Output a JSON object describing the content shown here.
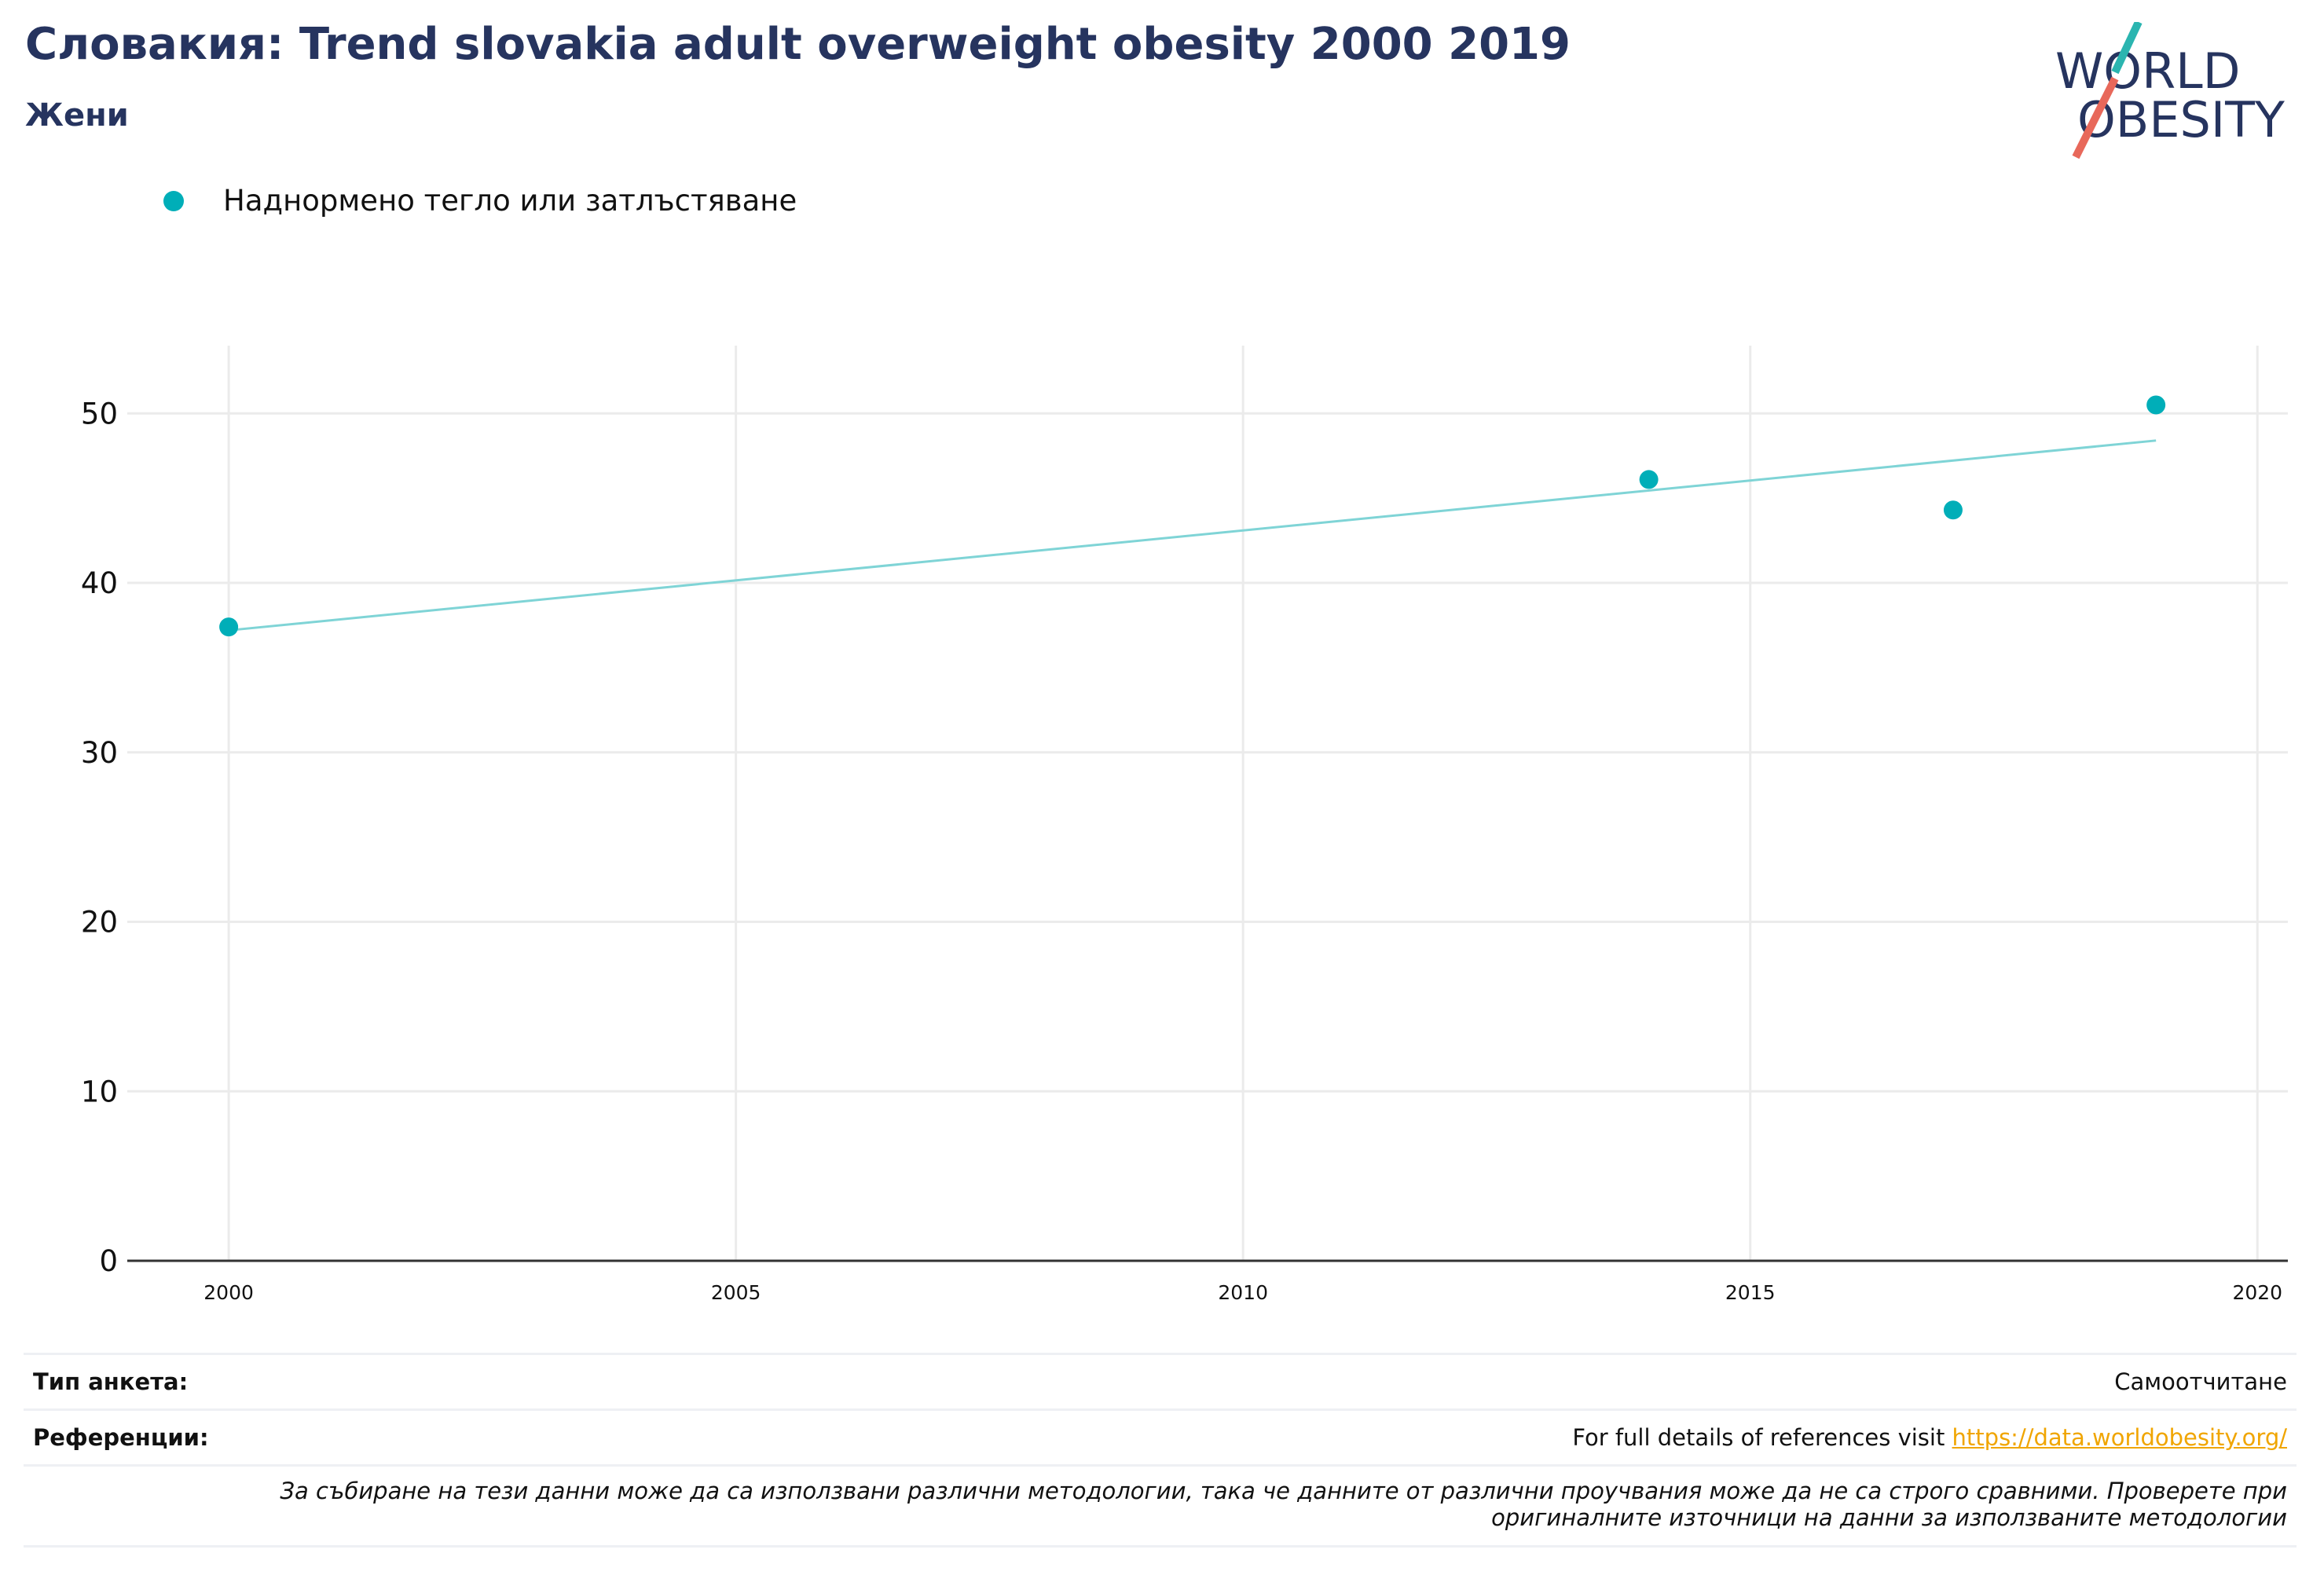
{
  "header": {
    "title": "Словакия: Trend slovakia adult overweight obesity 2000 2019",
    "subtitle": "Жени"
  },
  "logo": {
    "line1": "WORLD",
    "line2": "OBESITY",
    "accent_teal": "#2bb5b0",
    "accent_red": "#e8685a"
  },
  "colors": {
    "series": "#00aeb8",
    "trend": "#7fd4d6",
    "title": "#26345f",
    "grid": "#ebebeb",
    "link": "#f0a500"
  },
  "chart_data": {
    "type": "scatter",
    "legend": {
      "label": "Наднормено тегло или затлъстяване",
      "position": "top-left"
    },
    "series": [
      {
        "name": "Наднормено тегло или затлъстяване",
        "x": [
          2000,
          2014,
          2017,
          2019
        ],
        "y": [
          37.4,
          46.1,
          44.3,
          50.5
        ]
      }
    ],
    "trendline": {
      "x": [
        2000,
        2019
      ],
      "y": [
        37.2,
        48.4
      ]
    },
    "xlim": [
      1999,
      2020.3
    ],
    "ylim": [
      0,
      54
    ],
    "x_ticks": [
      2000,
      2005,
      2010,
      2015,
      2020
    ],
    "y_ticks": [
      0,
      10,
      20,
      30,
      40,
      50
    ],
    "grid": true
  },
  "info": {
    "survey_type_label": "Тип анкета:",
    "survey_type_value": "Самоотчитане",
    "references_label": "Референции:",
    "references_text": "For full details of references visit ",
    "references_link": "https://data.worldobesity.org/",
    "note": "За събиране на тези данни може да са използвани различни методологии, така че данните от различни проучвания може да не са строго сравними. Проверете при оригиналните източници на данни за използваните методологии"
  }
}
